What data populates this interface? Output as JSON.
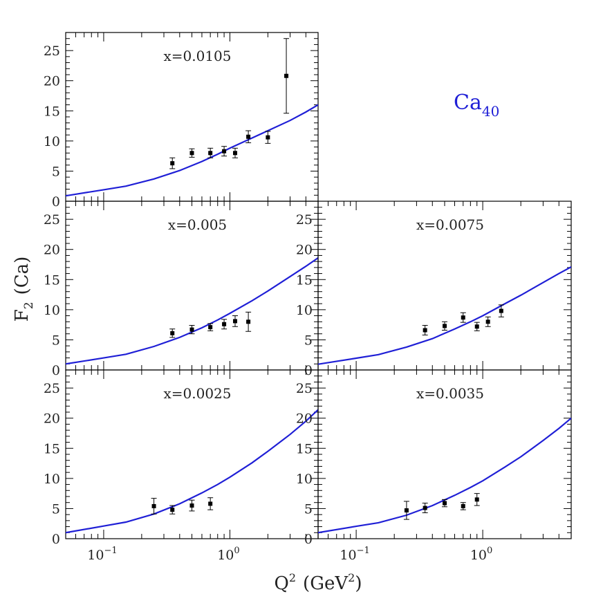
{
  "figure": {
    "ylabel_main": "F",
    "ylabel_sub": "2",
    "ylabel_rest": "(Ca)",
    "xlabel_main": "Q",
    "xlabel_sup": "2",
    "xlabel_mid": "(GeV",
    "xlabel_sup2": "2",
    "xlabel_end": ")",
    "nucleus": "Ca",
    "nucleus_sub": "40",
    "curve_color": "#1f1fd6",
    "label_color": "#1f1fd6"
  },
  "chart_data": [
    {
      "type": "scatter",
      "panel": "top-left",
      "title": "x=0.0105",
      "xscale": "log",
      "xlim": [
        0.05,
        5.0
      ],
      "ylim": [
        0,
        28
      ],
      "yticks": [
        0,
        5,
        10,
        15,
        20,
        25
      ],
      "xtick_labels": [],
      "points": [
        {
          "x": 0.35,
          "y": 6.3,
          "err": 0.9
        },
        {
          "x": 0.5,
          "y": 8.0,
          "err": 0.7
        },
        {
          "x": 0.7,
          "y": 8.0,
          "err": 0.8
        },
        {
          "x": 0.9,
          "y": 8.3,
          "err": 0.8
        },
        {
          "x": 1.1,
          "y": 8.0,
          "err": 0.8
        },
        {
          "x": 1.4,
          "y": 10.7,
          "err": 1.0
        },
        {
          "x": 2.0,
          "y": 10.6,
          "err": 1.0
        },
        {
          "x": 2.8,
          "y": 20.8,
          "err": 6.2
        }
      ],
      "curve": {
        "x": [
          0.05,
          0.1,
          0.15,
          0.25,
          0.4,
          0.6,
          0.8,
          1.0,
          1.5,
          2.0,
          3.0,
          4.0,
          5.0
        ],
        "y": [
          0.9,
          1.9,
          2.5,
          3.7,
          5.1,
          6.6,
          7.8,
          8.8,
          10.5,
          11.7,
          13.4,
          14.8,
          16.0
        ]
      }
    },
    {
      "type": "scatter",
      "panel": "middle-left",
      "title": "x=0.005",
      "xscale": "log",
      "xlim": [
        0.05,
        5.0
      ],
      "ylim": [
        0,
        28
      ],
      "yticks": [
        0,
        5,
        10,
        15,
        20,
        25
      ],
      "xtick_labels": [],
      "points": [
        {
          "x": 0.35,
          "y": 6.1,
          "err": 0.7
        },
        {
          "x": 0.5,
          "y": 6.7,
          "err": 0.7
        },
        {
          "x": 0.7,
          "y": 7.1,
          "err": 0.6
        },
        {
          "x": 0.9,
          "y": 7.6,
          "err": 0.8
        },
        {
          "x": 1.1,
          "y": 8.1,
          "err": 0.9
        },
        {
          "x": 1.4,
          "y": 8.0,
          "err": 1.6
        }
      ],
      "curve": {
        "x": [
          0.05,
          0.1,
          0.15,
          0.25,
          0.4,
          0.6,
          0.8,
          1.0,
          1.5,
          2.0,
          3.0,
          4.0,
          5.0
        ],
        "y": [
          1.0,
          2.0,
          2.6,
          3.9,
          5.4,
          7.0,
          8.3,
          9.4,
          11.5,
          13.1,
          15.5,
          17.2,
          18.6
        ]
      }
    },
    {
      "type": "scatter",
      "panel": "middle-right",
      "title": "x=0.0075",
      "xscale": "log",
      "xlim": [
        0.05,
        5.0
      ],
      "ylim": [
        0,
        28
      ],
      "yticks": [
        0,
        5,
        10,
        15,
        20,
        25
      ],
      "xtick_labels": [],
      "points": [
        {
          "x": 0.35,
          "y": 6.6,
          "err": 0.8
        },
        {
          "x": 0.5,
          "y": 7.3,
          "err": 0.7
        },
        {
          "x": 0.7,
          "y": 8.7,
          "err": 0.8
        },
        {
          "x": 0.9,
          "y": 7.2,
          "err": 0.7
        },
        {
          "x": 1.1,
          "y": 8.0,
          "err": 0.8
        },
        {
          "x": 1.4,
          "y": 9.8,
          "err": 1.0
        }
      ],
      "curve": {
        "x": [
          0.05,
          0.1,
          0.15,
          0.25,
          0.4,
          0.6,
          0.8,
          1.0,
          1.5,
          2.0,
          3.0,
          4.0,
          5.0
        ],
        "y": [
          0.95,
          1.95,
          2.55,
          3.8,
          5.2,
          6.8,
          8.0,
          9.0,
          11.0,
          12.4,
          14.5,
          16.0,
          17.1
        ]
      }
    },
    {
      "type": "scatter",
      "panel": "bottom-left",
      "title": "x=0.0025",
      "xscale": "log",
      "xlim": [
        0.05,
        5.0
      ],
      "ylim": [
        0,
        28
      ],
      "yticks": [
        0,
        5,
        10,
        15,
        20,
        25
      ],
      "xtick_labels": [
        "10",
        "10"
      ],
      "xtick_exps": [
        "−1",
        "0"
      ],
      "xtick_values": [
        0.1,
        1.0
      ],
      "points": [
        {
          "x": 0.25,
          "y": 5.4,
          "err": 1.3
        },
        {
          "x": 0.35,
          "y": 4.8,
          "err": 0.7
        },
        {
          "x": 0.5,
          "y": 5.5,
          "err": 0.9
        },
        {
          "x": 0.7,
          "y": 5.8,
          "err": 1.0
        }
      ],
      "curve": {
        "x": [
          0.05,
          0.1,
          0.15,
          0.25,
          0.4,
          0.6,
          0.8,
          1.0,
          1.5,
          2.0,
          3.0,
          4.0,
          5.0
        ],
        "y": [
          1.0,
          2.1,
          2.75,
          4.1,
          5.8,
          7.6,
          9.0,
          10.2,
          12.6,
          14.5,
          17.3,
          19.5,
          21.4
        ]
      }
    },
    {
      "type": "scatter",
      "panel": "bottom-right",
      "title": "x=0.0035",
      "xscale": "log",
      "xlim": [
        0.05,
        5.0
      ],
      "ylim": [
        0,
        28
      ],
      "yticks": [
        0,
        5,
        10,
        15,
        20,
        25
      ],
      "xtick_labels": [
        "10",
        "10"
      ],
      "xtick_exps": [
        "−1",
        "0"
      ],
      "xtick_values": [
        0.1,
        1.0
      ],
      "points": [
        {
          "x": 0.25,
          "y": 4.7,
          "err": 1.5
        },
        {
          "x": 0.35,
          "y": 5.1,
          "err": 0.8
        },
        {
          "x": 0.5,
          "y": 5.9,
          "err": 0.6
        },
        {
          "x": 0.7,
          "y": 5.4,
          "err": 0.6
        },
        {
          "x": 0.9,
          "y": 6.5,
          "err": 1.0
        }
      ],
      "curve": {
        "x": [
          0.05,
          0.1,
          0.15,
          0.25,
          0.4,
          0.6,
          0.8,
          1.0,
          1.5,
          2.0,
          3.0,
          4.0,
          5.0
        ],
        "y": [
          1.0,
          2.05,
          2.65,
          3.9,
          5.5,
          7.2,
          8.5,
          9.6,
          11.9,
          13.6,
          16.3,
          18.3,
          20.0
        ]
      }
    }
  ]
}
